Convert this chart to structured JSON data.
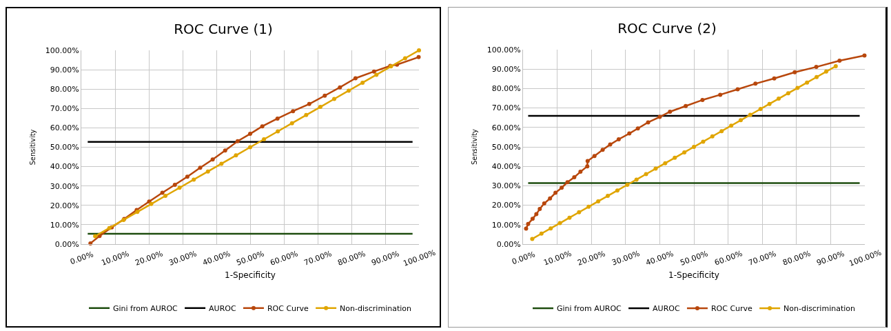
{
  "chart_data": [
    {
      "type": "line",
      "title": "ROC Curve (1)",
      "xlabel": "1-Specificity",
      "ylabel": "Sensitivity",
      "xlim": [
        0,
        100
      ],
      "ylim": [
        0,
        100
      ],
      "xticks": [
        {
          "value": 0,
          "label": "0.00%"
        },
        {
          "value": 10,
          "label": "10.00%"
        },
        {
          "value": 20,
          "label": "20.00%"
        },
        {
          "value": 30,
          "label": "30.00%"
        },
        {
          "value": 40,
          "label": "40.00%"
        },
        {
          "value": 50,
          "label": "50.00%"
        },
        {
          "value": 60,
          "label": "60.00%"
        },
        {
          "value": 70,
          "label": "70.00%"
        },
        {
          "value": 80,
          "label": "80.00%"
        },
        {
          "value": 90,
          "label": "90.00%"
        },
        {
          "value": 100,
          "label": "100.00%"
        }
      ],
      "yticks": [
        {
          "value": 0,
          "label": "0.00%"
        },
        {
          "value": 10,
          "label": "10.00%"
        },
        {
          "value": 20,
          "label": "20.00%"
        },
        {
          "value": 30,
          "label": "30.00%"
        },
        {
          "value": 40,
          "label": "40.00%"
        },
        {
          "value": 50,
          "label": "50.00%"
        },
        {
          "value": 60,
          "label": "60.00%"
        },
        {
          "value": 70,
          "label": "70.00%"
        },
        {
          "value": 80,
          "label": "80.00%"
        },
        {
          "value": 90,
          "label": "90.00%"
        },
        {
          "value": 100,
          "label": "100.00%"
        }
      ],
      "grid": true,
      "legend": "bottom",
      "marker": "circle",
      "line_style": "solid",
      "series": [
        {
          "name": "Gini from AUROC",
          "color": "#1e4d0f",
          "marker": "none",
          "x": [
            1.9,
            98.1
          ],
          "values": [
            5.3,
            5.3
          ]
        },
        {
          "name": "AUROC",
          "color": "#000000",
          "marker": "none",
          "x": [
            1.9,
            98.1
          ],
          "values": [
            52.8,
            52.8
          ]
        },
        {
          "name": "ROC Curve",
          "color": "#b8470c",
          "x": [
            2.7,
            5.4,
            9.0,
            12.7,
            16.4,
            20.1,
            24.0,
            27.7,
            31.4,
            35.2,
            38.9,
            42.6,
            46.3,
            50.0,
            53.6,
            58.1,
            62.7,
            67.5,
            72.1,
            76.6,
            81.2,
            86.7,
            91.5,
            93.5,
            99.9
          ],
          "values": [
            0.4,
            4.2,
            8.6,
            13.0,
            17.6,
            22.0,
            26.5,
            30.6,
            34.8,
            39.4,
            43.7,
            48.3,
            53.1,
            56.9,
            60.8,
            64.8,
            68.6,
            72.3,
            76.6,
            80.9,
            85.6,
            89.1,
            92.0,
            92.6,
            96.5
          ]
        },
        {
          "name": "Non-discrimination",
          "color": "#e0a500",
          "x": [
            4.1,
            8.3,
            12.5,
            16.6,
            20.7,
            24.9,
            29.1,
            33.3,
            37.5,
            41.5,
            45.8,
            50.0,
            54.1,
            58.2,
            62.4,
            66.6,
            70.8,
            74.9,
            79.2,
            83.3,
            87.4,
            91.7,
            95.9,
            100
          ],
          "values": [
            4.1,
            8.3,
            12.5,
            16.6,
            20.7,
            24.9,
            29.1,
            33.3,
            37.5,
            41.5,
            45.8,
            50.0,
            54.1,
            58.2,
            62.4,
            66.6,
            70.8,
            74.9,
            79.2,
            83.3,
            87.4,
            91.7,
            95.9,
            100
          ]
        }
      ]
    },
    {
      "type": "line",
      "title": "ROC Curve (2)",
      "xlabel": "1-Specificity",
      "ylabel": "Sensitivity",
      "xlim": [
        0,
        100
      ],
      "ylim": [
        0,
        100
      ],
      "xticks": [
        {
          "value": 0,
          "label": "0.00%"
        },
        {
          "value": 10,
          "label": "10.00%"
        },
        {
          "value": 20,
          "label": "20.00%"
        },
        {
          "value": 30,
          "label": "30.00%"
        },
        {
          "value": 40,
          "label": "40.00%"
        },
        {
          "value": 50,
          "label": "50.00%"
        },
        {
          "value": 60,
          "label": "60.00%"
        },
        {
          "value": 70,
          "label": "70.00%"
        },
        {
          "value": 80,
          "label": "80.00%"
        },
        {
          "value": 90,
          "label": "90.00%"
        },
        {
          "value": 100,
          "label": "100.00%"
        }
      ],
      "yticks": [
        {
          "value": 0,
          "label": "0.00%"
        },
        {
          "value": 10,
          "label": "10.00%"
        },
        {
          "value": 20,
          "label": "20.00%"
        },
        {
          "value": 30,
          "label": "30.00%"
        },
        {
          "value": 40,
          "label": "40.00%"
        },
        {
          "value": 50,
          "label": "50.00%"
        },
        {
          "value": 60,
          "label": "60.00%"
        },
        {
          "value": 70,
          "label": "70.00%"
        },
        {
          "value": 80,
          "label": "80.00%"
        },
        {
          "value": 90,
          "label": "90.00%"
        },
        {
          "value": 100,
          "label": "100.00%"
        }
      ],
      "grid": true,
      "legend": "bottom",
      "marker": "circle",
      "line_style": "solid",
      "series": [
        {
          "name": "Gini from AUROC",
          "color": "#1e4d0f",
          "marker": "none",
          "x": [
            1.5,
            98.5
          ],
          "values": [
            31.4,
            31.4
          ]
        },
        {
          "name": "AUROC",
          "color": "#000000",
          "marker": "none",
          "x": [
            1.5,
            98.5
          ],
          "values": [
            66.0,
            66.0
          ]
        },
        {
          "name": "ROC Curve",
          "color": "#b8470c",
          "x": [
            0.9,
            1.5,
            2.8,
            3.9,
            4.9,
            6.2,
            7.9,
            9.5,
            11.3,
            13.0,
            15.0,
            16.8,
            18.8,
            18.9,
            20.9,
            23.3,
            25.5,
            28.0,
            31.1,
            33.6,
            36.6,
            40.0,
            43.0,
            47.6,
            52.5,
            57.7,
            62.8,
            68.0,
            73.5,
            79.5,
            85.8,
            92.6,
            99.9
          ],
          "values": [
            8.0,
            10.4,
            13.0,
            15.4,
            18.1,
            20.9,
            23.5,
            26.4,
            29.0,
            31.8,
            34.4,
            37.2,
            40.0,
            42.7,
            45.3,
            48.5,
            51.2,
            53.9,
            56.9,
            59.5,
            62.6,
            65.4,
            68.1,
            71.0,
            74.1,
            76.8,
            79.6,
            82.5,
            85.2,
            88.4,
            91.1,
            94.3,
            97.0
          ]
        },
        {
          "name": "Non-discrimination",
          "color": "#e0a500",
          "x": [
            2.7,
            5.4,
            8.1,
            10.8,
            13.6,
            16.4,
            19.2,
            22.0,
            24.8,
            27.6,
            30.5,
            33.2,
            36.0,
            38.8,
            41.6,
            44.4,
            47.2,
            50.0,
            52.7,
            55.4,
            58.1,
            60.9,
            63.7,
            66.5,
            69.5,
            72.1,
            74.8,
            77.6,
            80.3,
            83.1,
            85.9,
            88.7,
            91.5
          ],
          "values": [
            2.7,
            5.4,
            8.1,
            10.8,
            13.6,
            16.4,
            19.2,
            22.0,
            24.8,
            27.6,
            30.5,
            33.2,
            36.0,
            38.8,
            41.6,
            44.4,
            47.2,
            50.0,
            52.7,
            55.4,
            58.1,
            60.9,
            63.7,
            66.5,
            69.5,
            72.1,
            74.8,
            77.6,
            80.3,
            83.1,
            85.9,
            88.7,
            91.5
          ]
        }
      ]
    }
  ]
}
